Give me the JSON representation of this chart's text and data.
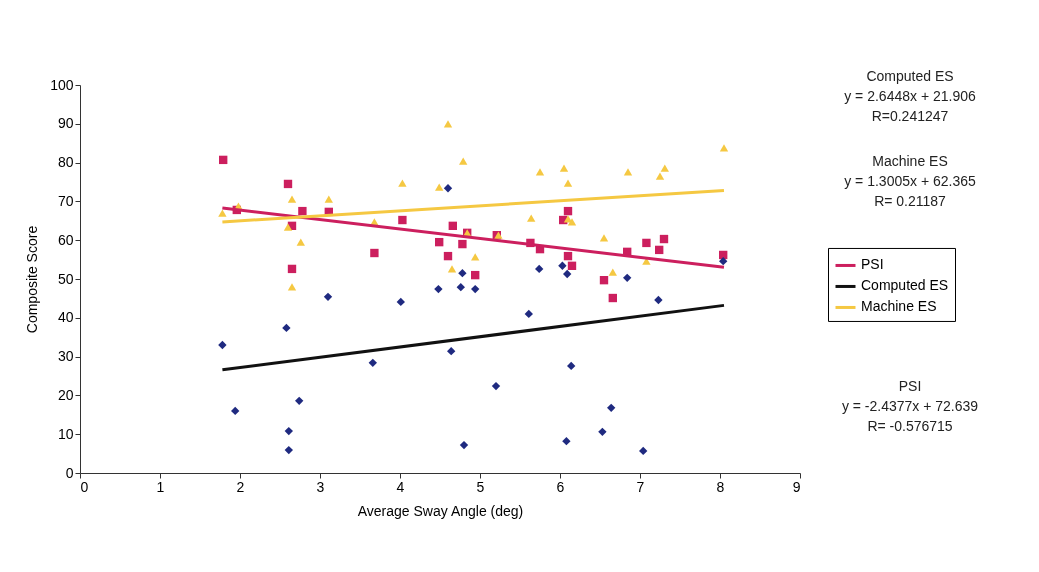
{
  "chart_data": {
    "type": "scatter",
    "xlabel": "Average Sway Angle (deg)",
    "ylabel": "Composite Score",
    "xlim": [
      0,
      9
    ],
    "xticks": [
      0,
      1,
      2,
      3,
      4,
      5,
      6,
      7,
      8,
      9
    ],
    "ylim": [
      0,
      100
    ],
    "yticks": [
      0,
      10,
      20,
      30,
      40,
      50,
      60,
      70,
      80,
      90,
      100
    ],
    "grid": false,
    "legend": "right",
    "series": [
      {
        "marker": "square",
        "color": "#cc1f5e",
        "x": [
          1.79,
          1.96,
          2.6,
          2.65,
          2.65,
          2.78,
          3.11,
          3.68,
          4.03,
          4.49,
          4.6,
          4.66,
          4.78,
          4.84,
          4.94,
          5.21,
          5.63,
          5.75,
          6.04,
          6.1,
          6.1,
          6.15,
          6.55,
          6.66,
          6.84,
          7.08,
          7.24,
          7.3,
          8.04
        ],
        "values": [
          80.7,
          67.8,
          74.5,
          63.7,
          52.6,
          67.5,
          67.3,
          56.7,
          65.2,
          59.5,
          55.9,
          63.7,
          59.0,
          61.9,
          51.0,
          61.3,
          59.3,
          57.7,
          65.2,
          67.5,
          55.9,
          53.4,
          49.7,
          45.1,
          57.0,
          59.3,
          57.5,
          60.3,
          56.2
        ]
      },
      {
        "marker": "diamond",
        "color": "#1f2a80",
        "x": [
          1.78,
          1.94,
          2.58,
          2.61,
          2.61,
          2.74,
          3.1,
          3.66,
          4.01,
          4.48,
          4.6,
          4.64,
          4.76,
          4.78,
          4.8,
          4.94,
          5.2,
          5.61,
          5.74,
          6.03,
          6.08,
          6.09,
          6.14,
          6.53,
          6.64,
          6.84,
          7.04,
          7.23,
          8.04
        ],
        "values": [
          33.0,
          16.0,
          37.4,
          10.8,
          5.9,
          18.6,
          45.4,
          28.4,
          44.1,
          47.4,
          73.4,
          31.4,
          47.9,
          51.5,
          7.2,
          47.4,
          22.4,
          41.0,
          52.6,
          53.4,
          8.2,
          51.3,
          27.6,
          10.6,
          16.8,
          50.3,
          5.7,
          44.6,
          54.6
        ]
      },
      {
        "marker": "triangle",
        "color": "#f5c842",
        "x": [
          1.78,
          1.98,
          2.6,
          2.65,
          2.65,
          2.76,
          3.11,
          3.68,
          4.03,
          4.49,
          4.6,
          4.65,
          4.79,
          4.84,
          4.94,
          5.23,
          5.64,
          5.75,
          6.05,
          6.1,
          6.1,
          6.15,
          6.55,
          6.66,
          6.85,
          7.08,
          7.25,
          7.31,
          8.05
        ],
        "values": [
          67.0,
          68.8,
          63.4,
          70.6,
          48.0,
          59.5,
          70.6,
          64.7,
          74.7,
          73.7,
          90.0,
          52.6,
          80.4,
          61.9,
          55.7,
          61.3,
          65.7,
          77.6,
          78.6,
          74.7,
          65.5,
          64.7,
          60.6,
          51.8,
          77.6,
          54.6,
          76.5,
          78.6,
          83.8
        ]
      },
      {
        "type": "line",
        "name": "PSI",
        "marker": "none",
        "color": "#cc1f5e",
        "x": [
          1.78,
          8.05
        ],
        "values": [
          68.3,
          53.0
        ]
      },
      {
        "type": "line",
        "name": "Computed ES",
        "marker": "none",
        "color": "#111111",
        "x": [
          1.78,
          8.05
        ],
        "values": [
          26.6,
          43.2
        ]
      },
      {
        "type": "line",
        "name": "Machine ES",
        "marker": "none",
        "color": "#f5c842",
        "x": [
          1.78,
          8.05
        ],
        "values": [
          64.7,
          72.8
        ]
      }
    ],
    "annotations": [
      "Computed ES\ny = 2.6448x + 21.906\nR=0.241247",
      "Machine ES\ny = 1.3005x + 62.365\nR= 0.21187",
      "PSI\ny = -2.4377x + 72.639\nR= -0.576715"
    ]
  }
}
